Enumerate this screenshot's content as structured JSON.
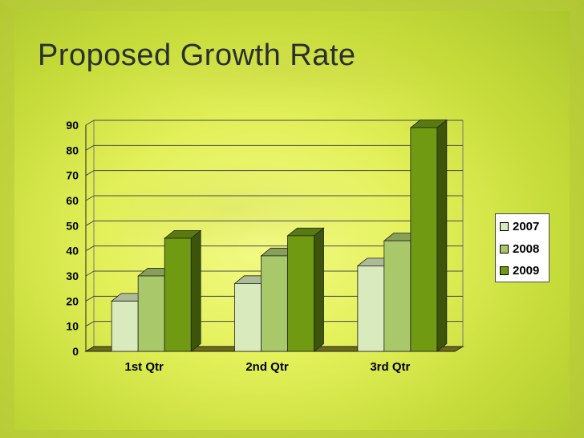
{
  "slide": {
    "title": "Proposed Growth Rate"
  },
  "chart_data": {
    "type": "bar",
    "title": "",
    "xlabel": "",
    "ylabel": "",
    "ylim": [
      0,
      90
    ],
    "yticks": [
      0,
      10,
      20,
      30,
      40,
      50,
      60,
      70,
      80,
      90
    ],
    "categories": [
      "1st Qtr",
      "2nd Qtr",
      "3rd Qtr"
    ],
    "series": [
      {
        "name": "2007",
        "values": [
          20,
          27,
          34
        ],
        "color": "#d9eabd"
      },
      {
        "name": "2008",
        "values": [
          30,
          38,
          44
        ],
        "color": "#a9c86a"
      },
      {
        "name": "2009",
        "values": [
          45,
          46,
          89
        ],
        "color": "#6f9a12"
      }
    ],
    "grid": true,
    "legend_position": "right",
    "style": "3d-clustered-column"
  }
}
